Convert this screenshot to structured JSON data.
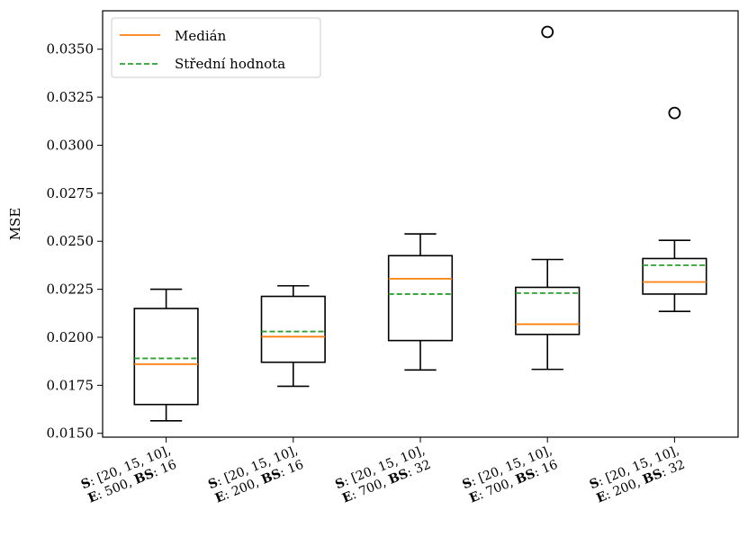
{
  "chart_data": {
    "type": "box",
    "ylabel": "MSE",
    "ylim": [
      0.0148,
      0.037
    ],
    "yticks": [
      "0.0150",
      "0.0175",
      "0.0200",
      "0.0225",
      "0.0250",
      "0.0275",
      "0.0300",
      "0.0325",
      "0.0350"
    ],
    "ytick_values": [
      0.015,
      0.0175,
      0.02,
      0.0225,
      0.025,
      0.0275,
      0.03,
      0.0325,
      0.035
    ],
    "legend": {
      "placement": "top-left",
      "entries": [
        {
          "label": "Medián",
          "style": "solid",
          "color": "#ff7f0e"
        },
        {
          "label": "Střední hodnota",
          "style": "dashed",
          "color": "#2ca02c"
        }
      ]
    },
    "categories": [
      {
        "line1": [
          {
            "t": "S",
            "b": true
          },
          {
            "t": ": [20, 15, 10],",
            "b": false
          }
        ],
        "line2": [
          {
            "t": "E",
            "b": true
          },
          {
            "t": ": 500, ",
            "b": false
          },
          {
            "t": "BS",
            "b": true
          },
          {
            "t": ": 16",
            "b": false
          }
        ]
      },
      {
        "line1": [
          {
            "t": "S",
            "b": true
          },
          {
            "t": ": [20, 15, 10],",
            "b": false
          }
        ],
        "line2": [
          {
            "t": "E",
            "b": true
          },
          {
            "t": ": 200, ",
            "b": false
          },
          {
            "t": "BS",
            "b": true
          },
          {
            "t": ": 16",
            "b": false
          }
        ]
      },
      {
        "line1": [
          {
            "t": "S",
            "b": true
          },
          {
            "t": ": [20, 15, 10],",
            "b": false
          }
        ],
        "line2": [
          {
            "t": "E",
            "b": true
          },
          {
            "t": ": 700, ",
            "b": false
          },
          {
            "t": "BS",
            "b": true
          },
          {
            "t": ": 32",
            "b": false
          }
        ]
      },
      {
        "line1": [
          {
            "t": "S",
            "b": true
          },
          {
            "t": ": [20, 15, 10],",
            "b": false
          }
        ],
        "line2": [
          {
            "t": "E",
            "b": true
          },
          {
            "t": ": 700, ",
            "b": false
          },
          {
            "t": "BS",
            "b": true
          },
          {
            "t": ": 16",
            "b": false
          }
        ]
      },
      {
        "line1": [
          {
            "t": "S",
            "b": true
          },
          {
            "t": ": [20, 15, 10],",
            "b": false
          }
        ],
        "line2": [
          {
            "t": "E",
            "b": true
          },
          {
            "t": ": 200, ",
            "b": false
          },
          {
            "t": "BS",
            "b": true
          },
          {
            "t": ": 32",
            "b": false
          }
        ]
      }
    ],
    "boxes": [
      {
        "whisker_low": 0.01565,
        "q1": 0.0165,
        "median": 0.0186,
        "mean": 0.0189,
        "q3": 0.0215,
        "whisker_high": 0.0225,
        "outliers": []
      },
      {
        "whisker_low": 0.01745,
        "q1": 0.0187,
        "median": 0.02003,
        "mean": 0.0203,
        "q3": 0.02213,
        "whisker_high": 0.02268,
        "outliers": []
      },
      {
        "whisker_low": 0.0183,
        "q1": 0.01983,
        "median": 0.02305,
        "mean": 0.02225,
        "q3": 0.02425,
        "whisker_high": 0.02538,
        "outliers": []
      },
      {
        "whisker_low": 0.01833,
        "q1": 0.02015,
        "median": 0.02068,
        "mean": 0.0223,
        "q3": 0.0226,
        "whisker_high": 0.02405,
        "outliers": [
          0.0359
        ]
      },
      {
        "whisker_low": 0.02135,
        "q1": 0.02225,
        "median": 0.02288,
        "mean": 0.02375,
        "q3": 0.0241,
        "whisker_high": 0.02505,
        "outliers": [
          0.03168
        ]
      }
    ],
    "colors": {
      "median": "#ff7f0e",
      "mean": "#2ca02c",
      "box": "#000000"
    }
  }
}
